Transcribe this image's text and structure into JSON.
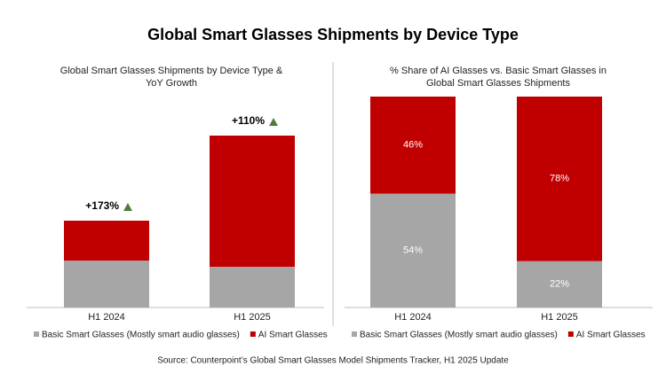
{
  "title": "Global Smart Glasses Shipments by Device Type",
  "source": "Source: Counterpoint’s Global Smart Glasses Model Shipments Tracker, H1 2025 Update",
  "chart_data": [
    {
      "type": "bar",
      "stacked": true,
      "title": "Global Smart Glasses Shipments by Device Type & YoY Growth",
      "categories": [
        "H1 2024",
        "H1 2025"
      ],
      "series": [
        {
          "name": "Basic Smart Glasses (Mostly smart audio glasses)",
          "color": "#a6a6a6",
          "values": [
            53,
            46
          ]
        },
        {
          "name": "AI Smart Glasses",
          "color": "#c00000",
          "values": [
            45,
            148
          ]
        }
      ],
      "growth": {
        "values": [
          173,
          110
        ],
        "value_labels": [
          "+173%",
          "+110%"
        ],
        "color": "#4e7d3a"
      }
    },
    {
      "type": "bar",
      "stacked": true,
      "title": "% Share of AI Glasses vs. Basic Smart Glasses in Global Smart Glasses Shipments",
      "categories": [
        "H1 2024",
        "H1 2025"
      ],
      "series": [
        {
          "name": "Basic Smart Glasses (Mostly smart audio glasses)",
          "color": "#a6a6a6",
          "values": [
            54,
            22
          ],
          "value_labels": [
            "54%",
            "22%"
          ]
        },
        {
          "name": "AI Smart Glasses",
          "color": "#c00000",
          "values": [
            46,
            78
          ],
          "value_labels": [
            "46%",
            "78%"
          ]
        }
      ]
    }
  ]
}
